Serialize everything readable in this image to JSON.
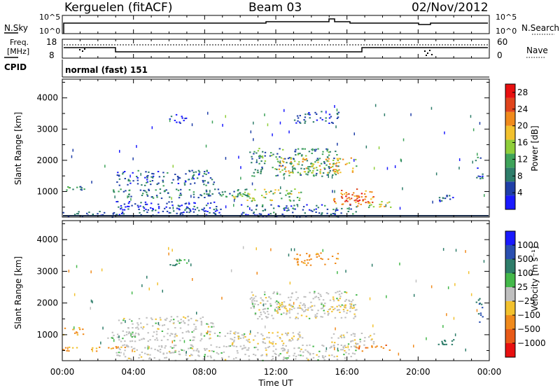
{
  "header": {
    "station": "Kerguelen (fitACF)",
    "beam": "Beam 03",
    "date": "02/Nov/2012"
  },
  "panels": {
    "nsky_label": "N.Sky",
    "nsearch_label": "N.Search",
    "nsky_ticks": [
      "10^5",
      "10^0"
    ],
    "nsearch_ticks": [
      "10^5",
      "10^0"
    ],
    "freq_label_line1": "Freq.",
    "freq_label_line2": "[MHz]",
    "freq_ticks": [
      "18",
      "8"
    ],
    "nave_label": "Nave",
    "nave_ticks": [
      "60",
      "0"
    ],
    "cpid_label": "CPID",
    "cpid_value": "normal (fast) 151"
  },
  "colors": {
    "power": [
      "#1a1aff",
      "#1f3fa8",
      "#2e7d6a",
      "#3ea35a",
      "#8fce3a",
      "#f2c12e",
      "#f08a1c",
      "#e0441c",
      "#e81010"
    ],
    "velocity": [
      "#1a1aff",
      "#2a4fb0",
      "#2e7d6a",
      "#44b84a",
      "#bfbfbf",
      "#f2c12e",
      "#f08a1c",
      "#e85a18",
      "#e81010"
    ]
  },
  "chart_data": [
    {
      "type": "heatmap",
      "title": "",
      "ylabel": "Slant Range [km]",
      "xlabel": "",
      "ylim": [
        180,
        4600
      ],
      "xlim": [
        0,
        24
      ],
      "yticks": [
        "1000",
        "2000",
        "3000",
        "4000"
      ],
      "xticks": [
        "00:00",
        "04:00",
        "08:00",
        "12:00",
        "16:00",
        "20:00",
        "00:00"
      ],
      "colorbar": {
        "label": "Power [dB]",
        "ticks": [
          "4",
          "8",
          "12",
          "16",
          "20",
          "24",
          "28"
        ],
        "range": [
          0,
          30
        ]
      },
      "patches": [
        {
          "t": [
            0.0,
            1.2
          ],
          "r": [
            1050,
            1200
          ],
          "power": 10
        },
        {
          "t": [
            0.0,
            3.5
          ],
          "r": [
            200,
            400
          ],
          "power": 6
        },
        {
          "t": [
            2.8,
            10.5
          ],
          "r": [
            800,
            1100
          ],
          "power": 8
        },
        {
          "t": [
            3.0,
            8.5
          ],
          "r": [
            1200,
            1700
          ],
          "power": 6
        },
        {
          "t": [
            3.0,
            9.0
          ],
          "r": [
            400,
            700
          ],
          "power": 4
        },
        {
          "t": [
            4.0,
            9.0
          ],
          "r": [
            250,
            500
          ],
          "power": 5
        },
        {
          "t": [
            6.0,
            7.0
          ],
          "r": [
            3200,
            3500
          ],
          "power": 4
        },
        {
          "t": [
            9.5,
            13.5
          ],
          "r": [
            700,
            1100
          ],
          "power": 14
        },
        {
          "t": [
            10.0,
            16.5
          ],
          "r": [
            200,
            600
          ],
          "power": 6
        },
        {
          "t": [
            10.5,
            15.5
          ],
          "r": [
            1500,
            2400
          ],
          "power": 10
        },
        {
          "t": [
            12.0,
            16.5
          ],
          "r": [
            1600,
            2100
          ],
          "power": 18
        },
        {
          "t": [
            13.0,
            15.5
          ],
          "r": [
            3200,
            3600
          ],
          "power": 5
        },
        {
          "t": [
            15.0,
            17.5
          ],
          "r": [
            600,
            1100
          ],
          "power": 22
        },
        {
          "t": [
            15.5,
            17.0
          ],
          "r": [
            700,
            1000
          ],
          "power": 27
        },
        {
          "t": [
            16.5,
            18.5
          ],
          "r": [
            500,
            700
          ],
          "power": 16
        },
        {
          "t": [
            21.0,
            22.0
          ],
          "r": [
            700,
            900
          ],
          "power": 7
        },
        {
          "t": [
            23.2,
            23.6
          ],
          "r": [
            1400,
            2200
          ],
          "power": 6
        }
      ]
    },
    {
      "type": "heatmap",
      "title": "",
      "ylabel": "Slant Range [km]",
      "xlabel": "Time UT",
      "ylim": [
        180,
        4600
      ],
      "xlim": [
        0,
        24
      ],
      "yticks": [
        "1000",
        "2000",
        "3000",
        "4000"
      ],
      "xticks": [
        "00:00",
        "04:00",
        "08:00",
        "12:00",
        "16:00",
        "20:00",
        "00:00"
      ],
      "colorbar": {
        "label": "Velocity [m s⁻¹]",
        "ticks": [
          "1000",
          "500",
          "100",
          "25",
          "−25",
          "−100",
          "−500",
          "−1000"
        ]
      },
      "patches": [
        {
          "t": [
            0.0,
            1.2
          ],
          "r": [
            1000,
            1250
          ],
          "vel": -150
        },
        {
          "t": [
            0.0,
            3.5
          ],
          "r": [
            500,
            650
          ],
          "vel": -150
        },
        {
          "t": [
            2.5,
            10.5
          ],
          "r": [
            800,
            1150
          ],
          "vel": 0
        },
        {
          "t": [
            3.0,
            8.5
          ],
          "r": [
            1200,
            1600
          ],
          "vel": 0
        },
        {
          "t": [
            3.0,
            16.5
          ],
          "r": [
            200,
            700
          ],
          "vel": 0
        },
        {
          "t": [
            6.0,
            7.0
          ],
          "r": [
            3200,
            3400
          ],
          "vel": 120
        },
        {
          "t": [
            9.5,
            13.5
          ],
          "r": [
            700,
            1100
          ],
          "vel": -30
        },
        {
          "t": [
            10.5,
            16.5
          ],
          "r": [
            1500,
            2400
          ],
          "vel": 0
        },
        {
          "t": [
            12.0,
            16.5
          ],
          "r": [
            1750,
            2000
          ],
          "vel": -50
        },
        {
          "t": [
            13.0,
            15.5
          ],
          "r": [
            3200,
            3600
          ],
          "vel": -200
        },
        {
          "t": [
            15.0,
            17.5
          ],
          "r": [
            600,
            1100
          ],
          "vel": 0
        },
        {
          "t": [
            16.5,
            18.5
          ],
          "r": [
            500,
            700
          ],
          "vel": -400
        },
        {
          "t": [
            21.0,
            22.0
          ],
          "r": [
            700,
            900
          ],
          "vel": 300
        },
        {
          "t": [
            23.2,
            23.6
          ],
          "r": [
            1400,
            2200
          ],
          "vel": 600
        }
      ]
    }
  ]
}
